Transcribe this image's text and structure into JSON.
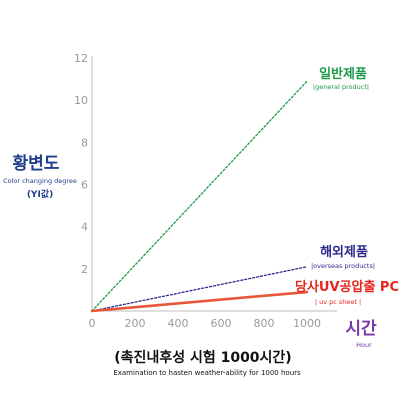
{
  "chart_data": {
    "type": "line",
    "xlim": [
      0,
      1000
    ],
    "ylim": [
      0,
      12
    ],
    "x_ticks": [
      0,
      200,
      400,
      600,
      800,
      1000
    ],
    "y_ticks": [
      2,
      4,
      6,
      8,
      10,
      12
    ],
    "grid": false,
    "ylabel": {
      "ko": "황변도",
      "en": "Color changing degree",
      "unit": "(YI값)"
    },
    "xlabel": {
      "ko": "시간",
      "en": "Hour"
    },
    "caption": {
      "ko": "(촉진내후성 시험 1000시간)",
      "en": "Examination to hasten weather-ability for 1000 hours"
    },
    "series": [
      {
        "name": "일반제품",
        "name_en": "|general product|",
        "x": [
          0,
          1000
        ],
        "y": [
          0,
          10.9
        ],
        "style": "dotted",
        "color": "#1e9a4a",
        "label_color": "#1e9a4a"
      },
      {
        "name": "해외제품",
        "name_en": "|overseas products|",
        "x": [
          0,
          1000
        ],
        "y": [
          0,
          2.1
        ],
        "style": "dotted",
        "color": "#2d2a8f",
        "label_color": "#2d2a8f"
      },
      {
        "name": "당사UV공압출 PC",
        "name_en": "| uv pc sheet |",
        "x": [
          0,
          1000
        ],
        "y": [
          0,
          0.9
        ],
        "style": "solid",
        "color": "#e8563a",
        "label_color": "#e8241c"
      }
    ]
  },
  "colors": {
    "axis": "#bfbfbf",
    "tick_text": "#999999",
    "ylabel": "#1f3f8c",
    "xlabel": "#7a3aa3",
    "caption": "#111111"
  }
}
